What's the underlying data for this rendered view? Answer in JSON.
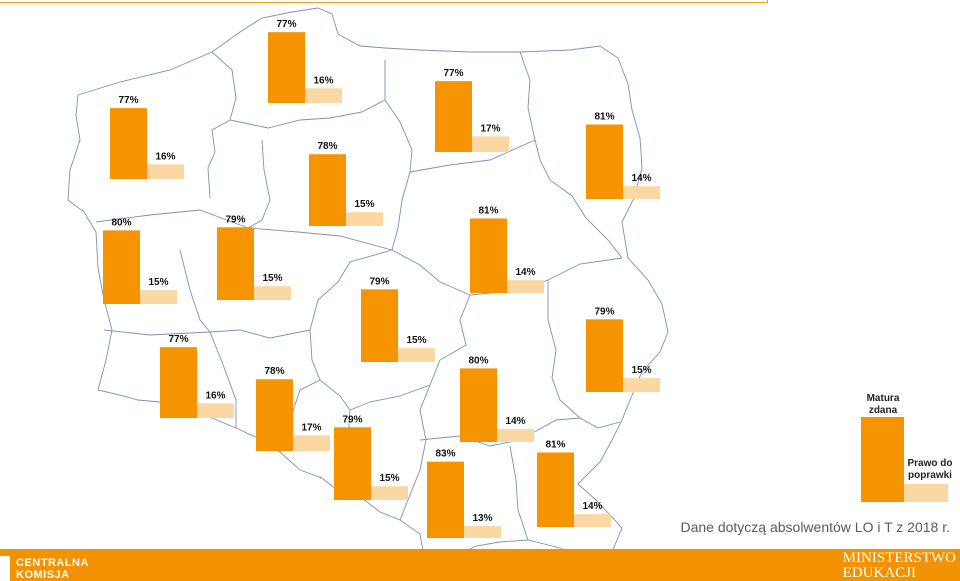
{
  "colors": {
    "pass": "#f59300",
    "retake": "#fbd7a4",
    "footer": "#f39200",
    "outline": "#7f8fb5"
  },
  "legend": {
    "pass_label": "Matura zdana",
    "retake_label": "Prawo do poprawki"
  },
  "footnote": "Dane dotyczą absolwentów LO i T z 2018 r.",
  "footer": {
    "logo_line1": "CENTRALNA",
    "logo_line2": "KOMISJA",
    "ministry_line1": "MINISTERSTWO",
    "ministry_line2": "EDUKACJI"
  },
  "chart_data": {
    "type": "bar",
    "unit": "%",
    "series": [
      {
        "name": "Matura zdana",
        "key": "pass"
      },
      {
        "name": "Prawo do poprawki",
        "key": "retake"
      }
    ],
    "groups": [
      {
        "pass": 77,
        "retake": 16,
        "pass_label": "77%",
        "retake_label": "16%"
      },
      {
        "pass": 77,
        "retake": 16,
        "pass_label": "77%",
        "retake_label": "16%"
      },
      {
        "pass": 78,
        "retake": 15,
        "pass_label": "78%",
        "retake_label": "15%"
      },
      {
        "pass": 77,
        "retake": 17,
        "pass_label": "77%",
        "retake_label": "17%"
      },
      {
        "pass": 81,
        "retake": 14,
        "pass_label": "81%",
        "retake_label": "14%"
      },
      {
        "pass": 80,
        "retake": 15,
        "pass_label": "80%",
        "retake_label": "15%"
      },
      {
        "pass": 79,
        "retake": 15,
        "pass_label": "79%",
        "retake_label": "15%"
      },
      {
        "pass": 81,
        "retake": 14,
        "pass_label": "81%",
        "retake_label": "14%"
      },
      {
        "pass": 79,
        "retake": 15,
        "pass_label": "79%",
        "retake_label": "15%"
      },
      {
        "pass": 79,
        "retake": 15,
        "pass_label": "79%",
        "retake_label": "15%"
      },
      {
        "pass": 77,
        "retake": 16,
        "pass_label": "77%",
        "retake_label": "16%"
      },
      {
        "pass": 78,
        "retake": 17,
        "pass_label": "78%",
        "retake_label": "17%"
      },
      {
        "pass": 80,
        "retake": 14,
        "pass_label": "80%",
        "retake_label": "14%"
      },
      {
        "pass": 79,
        "retake": 15,
        "pass_label": "79%",
        "retake_label": "15%"
      },
      {
        "pass": 83,
        "retake": 13,
        "pass_label": "83%",
        "retake_label": "13%"
      },
      {
        "pass": 81,
        "retake": 14,
        "pass_label": "81%",
        "retake_label": "14%"
      }
    ]
  }
}
